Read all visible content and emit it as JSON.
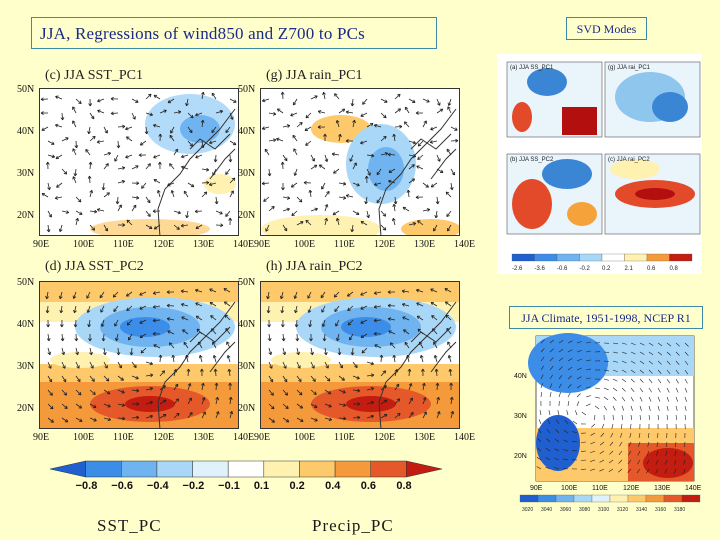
{
  "title": "JJA, Regressions of wind850 and Z700 to PCs",
  "svd_label": "SVD Modes",
  "climate_label": "JJA Climate, 1951-1998, NCEP R1",
  "panels": [
    {
      "label": "(c)  JJA  SST_PC1"
    },
    {
      "label": "(g)  JJA  rain_PC1"
    },
    {
      "label": "(d)  JJA  SST_PC2"
    },
    {
      "label": "(h)  JJA  rain_PC2"
    }
  ],
  "lat_ticks_top": [
    "50N",
    "40N",
    "30N",
    "20N"
  ],
  "lat_ticks_bottom": [
    "50N",
    "40N",
    "30N",
    "20N"
  ],
  "lon_ticks": [
    "90E",
    "100E",
    "110E",
    "120E",
    "130E",
    "140E"
  ],
  "colorbar_labels": [
    "−0.8",
    "−0.6",
    "−0.4",
    "−0.2",
    "−0.1",
    "0.1",
    "0.2",
    "0.4",
    "0.6",
    "0.8"
  ],
  "colorbar_colors": [
    "#1f5fcf",
    "#3b8de8",
    "#6fb3f0",
    "#a9d7f7",
    "#dff1fb",
    "#ffffff",
    "#fff1b0",
    "#fdc96a",
    "#f59a3a",
    "#e5582a",
    "#c21d10"
  ],
  "bottom_labels": {
    "left": "SST_PC",
    "right": "Precip_PC"
  },
  "svd_panel_labels": [
    "(a) JJA SS_PC1",
    "(g) JJA rai_PC1",
    "(b) JJA SS_PC2",
    "(c) JJA rai_PC2"
  ],
  "svd_cbar_labels": [
    "-2.6",
    "-3.6",
    "-0.6",
    "-0.2",
    "0.2",
    "2.1",
    "0.6",
    "0.8"
  ],
  "clim_lat_ticks": [
    "40N",
    "30N",
    "20N"
  ],
  "clim_lon_ticks": [
    "90E",
    "100E",
    "110E",
    "120E",
    "130E",
    "140E"
  ],
  "clim_cbar_labels": [
    "3020",
    "3040",
    "3060",
    "3080",
    "3100",
    "3120",
    "3140",
    "3160",
    "3180"
  ]
}
